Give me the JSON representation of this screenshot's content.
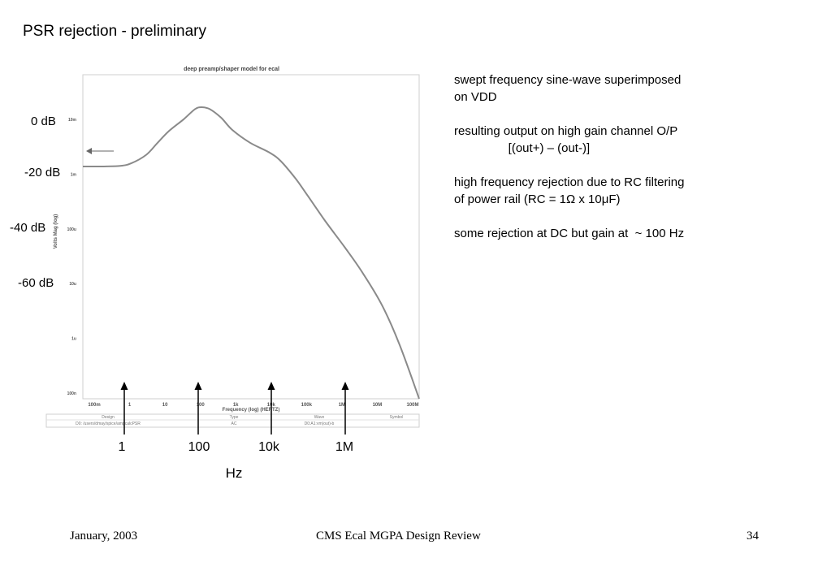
{
  "slide": {
    "title": "PSR rejection - preliminary",
    "notes": [
      [
        "swept frequency sine-wave superimposed",
        "on VDD"
      ],
      [
        "resulting output on high gain channel O/P",
        "                [(out+) – (out-)]"
      ],
      [
        "high frequency rejection due to RC filtering",
        "of power rail (RC = 1Ω x 10μF)"
      ],
      [
        "some rejection at DC but gain at  ~ 100 Hz"
      ]
    ],
    "footer": {
      "left": "January, 2003",
      "center": "CMS Ecal MGPA Design Review",
      "right": "34"
    }
  },
  "annotations": {
    "db_labels": [
      "0 dB",
      "-20 dB",
      "-40 dB",
      "-60 dB"
    ],
    "hz_labels": [
      "1",
      "100",
      "10k",
      "1M"
    ],
    "hz_unit": "Hz"
  },
  "chart_data": {
    "type": "line",
    "title": "deep preamp/shaper model for ecal",
    "xlabel": "Frequency (log) (HERTZ)",
    "ylabel": "Volts Mag (log)",
    "x_scale": "log",
    "y_scale": "log",
    "xlim": [
      0.1,
      100000000
    ],
    "ylim": [
      1e-07,
      0.1
    ],
    "x_ticks": [
      "100m",
      "1",
      "10",
      "100",
      "1k",
      "10k",
      "100k",
      "1M",
      "10M",
      "100M"
    ],
    "y_ticks": [
      "10m",
      "1m",
      "100u",
      "10u",
      "1u",
      "100n"
    ],
    "grid": false,
    "line_color": "#8a8a8a",
    "series": [
      {
        "x": [
          0.1,
          0.3,
          1,
          2,
          5,
          10,
          20,
          50,
          100,
          150,
          250,
          500,
          1000,
          3000,
          10000,
          20000,
          50000,
          100000,
          300000,
          1000000,
          3000000,
          10000000,
          30000000,
          100000000
        ],
        "y": [
          0.002,
          0.002,
          0.00205,
          0.0023,
          0.0033,
          0.0055,
          0.009,
          0.015,
          0.023,
          0.025,
          0.023,
          0.016,
          0.0095,
          0.0055,
          0.0036,
          0.0025,
          0.00118,
          0.0006,
          0.0002,
          6.5e-05,
          2.2e-05,
          5.5e-06,
          1e-06,
          1e-07
        ]
      }
    ],
    "legend_table": {
      "headers": [
        "Design",
        "Type",
        "Wave",
        "Symbol"
      ],
      "row": [
        "D0: /users/dmay/spice/ampcalcPSR",
        "AC",
        "D0:A1:vm(out)-b",
        ""
      ]
    }
  }
}
